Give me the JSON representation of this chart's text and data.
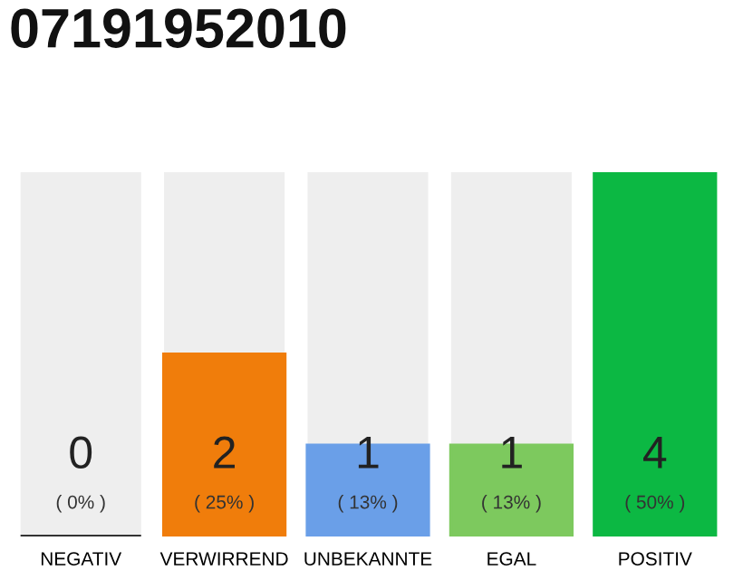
{
  "chart_data": {
    "type": "bar",
    "title": "07191952010",
    "categories": [
      "NEGATIV",
      "VERWIRREND",
      "UNBEKANNTE",
      "EGAL",
      "POSITIV"
    ],
    "values": [
      0,
      2,
      1,
      1,
      4
    ],
    "colors": [
      "#333333",
      "#f07d0b",
      "#6a9fe8",
      "#7dc95e",
      "#0cb843"
    ],
    "data_labels": true,
    "annotations": [
      "( 0% )",
      "( 25% )",
      "( 13% )",
      "( 13% )",
      "( 50% )"
    ],
    "grid": false,
    "legend": false
  }
}
